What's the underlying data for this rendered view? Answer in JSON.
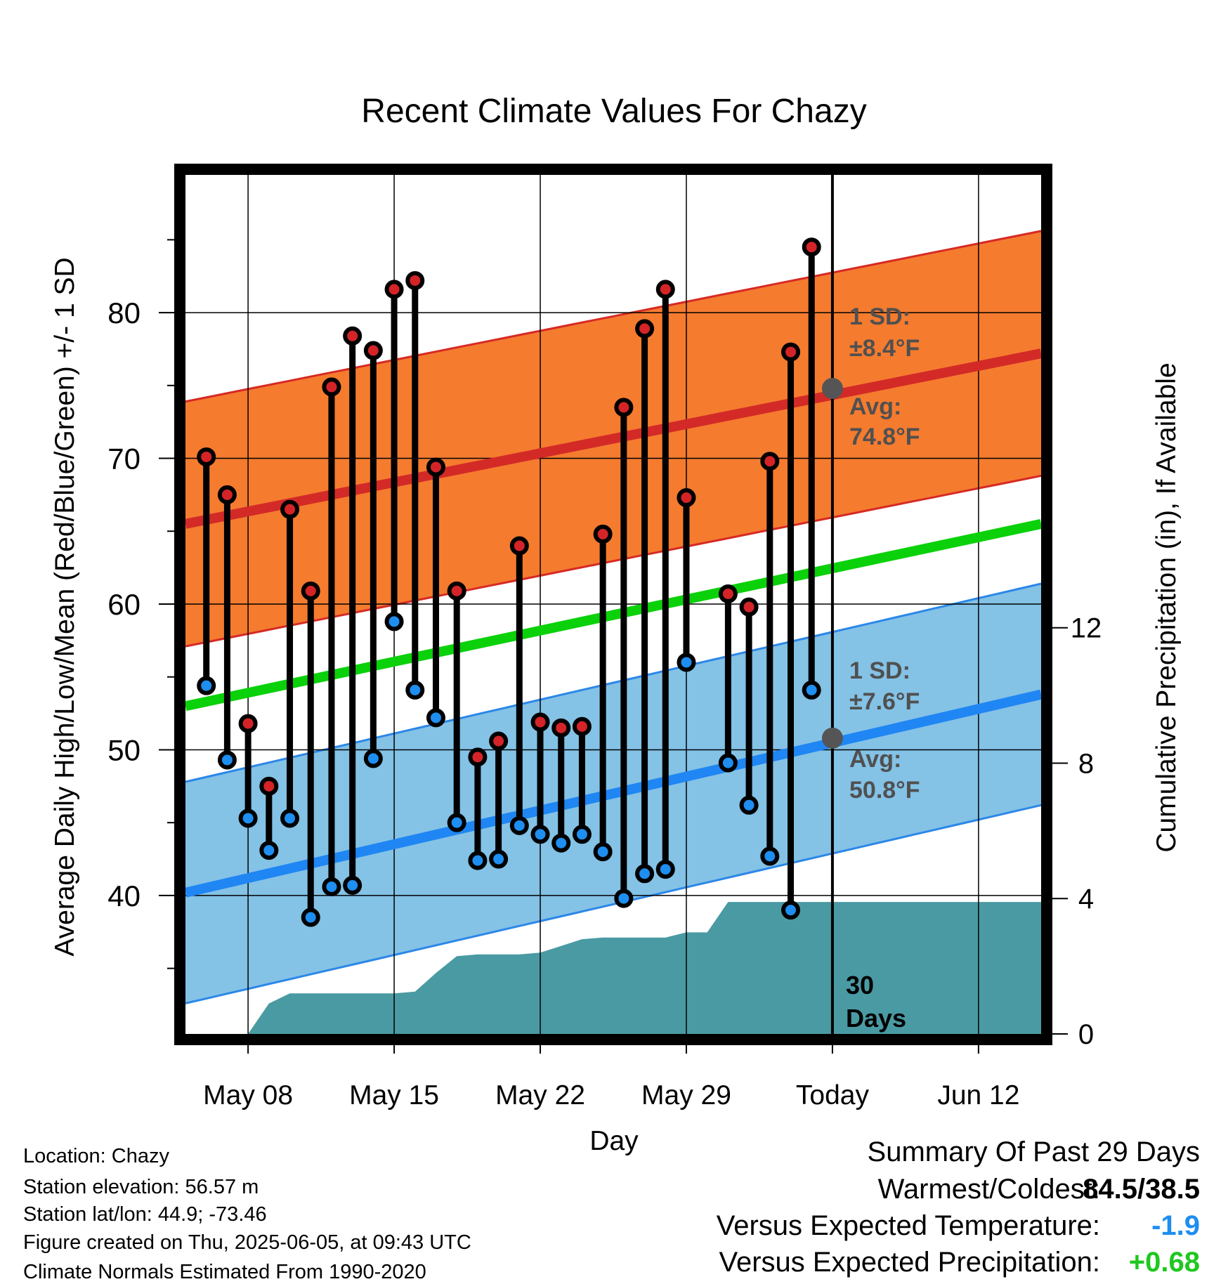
{
  "chart_data": {
    "type": "line",
    "title": "Recent Climate Values For Chazy",
    "xlabel": "Day",
    "ylabel": "Average Daily High/Low/Mean (Red/Blue/Green) +/- 1 SD",
    "y2label": "Cumulative Precipitation (in), If Available",
    "x_ticks": [
      "May 08",
      "May 15",
      "May 22",
      "May 29",
      "Today",
      "Jun 12"
    ],
    "y_ticks": [
      40,
      50,
      60,
      70,
      80
    ],
    "y2_ticks": [
      0,
      4,
      8,
      12
    ],
    "xlim": [
      "May 05",
      "Jun 15"
    ],
    "ylim": [
      30.5,
      89.5
    ],
    "y2lim": [
      0,
      25.4
    ],
    "today": "Jun 05",
    "window_label_num": "30",
    "window_label_text": "Days",
    "normal_high": {
      "start": 65.5,
      "end": 77.2
    },
    "normal_low": {
      "start": 40.2,
      "end": 53.8
    },
    "normal_mean": {
      "start": 53.0,
      "end": 65.5
    },
    "high_sd": 8.4,
    "low_sd": 7.6,
    "high_annotation": {
      "sd_title": "1 SD:",
      "sd_value": "±8.4°F",
      "avg_title": "Avg:",
      "avg_value": "74.8°F",
      "avg": 74.8
    },
    "low_annotation": {
      "sd_title": "1 SD:",
      "sd_value": "±7.6°F",
      "avg_title": "Avg:",
      "avg_value": "50.8°F",
      "avg": 50.8
    },
    "daily": [
      {
        "date": "May 06",
        "high": 70.1,
        "low": 54.4
      },
      {
        "date": "May 07",
        "high": 67.5,
        "low": 49.3
      },
      {
        "date": "May 08",
        "high": 51.8,
        "low": 45.3
      },
      {
        "date": "May 09",
        "high": 47.5,
        "low": 43.1
      },
      {
        "date": "May 10",
        "high": 66.5,
        "low": 45.3
      },
      {
        "date": "May 11",
        "high": 60.9,
        "low": 38.5
      },
      {
        "date": "May 12",
        "high": 74.9,
        "low": 40.6
      },
      {
        "date": "May 13",
        "high": 78.4,
        "low": 40.7
      },
      {
        "date": "May 14",
        "high": 77.4,
        "low": 49.4
      },
      {
        "date": "May 15",
        "high": 81.6,
        "low": 58.8
      },
      {
        "date": "May 16",
        "high": 82.2,
        "low": 54.1
      },
      {
        "date": "May 17",
        "high": 69.4,
        "low": 52.2
      },
      {
        "date": "May 18",
        "high": 60.9,
        "low": 45.0
      },
      {
        "date": "May 19",
        "high": 49.5,
        "low": 42.4
      },
      {
        "date": "May 20",
        "high": 50.6,
        "low": 42.5
      },
      {
        "date": "May 21",
        "high": 64.0,
        "low": 44.8
      },
      {
        "date": "May 22",
        "high": 51.9,
        "low": 44.2
      },
      {
        "date": "May 23",
        "high": 51.5,
        "low": 43.6
      },
      {
        "date": "May 24",
        "high": 51.6,
        "low": 44.2
      },
      {
        "date": "May 25",
        "high": 64.8,
        "low": 43.0
      },
      {
        "date": "May 26",
        "high": 73.5,
        "low": 39.8
      },
      {
        "date": "May 27",
        "high": 78.9,
        "low": 41.5
      },
      {
        "date": "May 28",
        "high": 81.6,
        "low": 41.8
      },
      {
        "date": "May 29",
        "high": 67.3,
        "low": 56.0
      },
      {
        "date": "May 31",
        "high": 60.7,
        "low": 49.1
      },
      {
        "date": "Jun 01",
        "high": 59.8,
        "low": 46.2
      },
      {
        "date": "Jun 02",
        "high": 69.8,
        "low": 42.7
      },
      {
        "date": "Jun 03",
        "high": 77.3,
        "low": 39.0
      },
      {
        "date": "Jun 04",
        "high": 84.5,
        "low": 54.1
      }
    ],
    "precipitation_cumulative": [
      {
        "date": "May 05",
        "value": 0
      },
      {
        "date": "May 06",
        "value": 0
      },
      {
        "date": "May 07",
        "value": 0
      },
      {
        "date": "May 08",
        "value": 0
      },
      {
        "date": "May 09",
        "value": 0.9
      },
      {
        "date": "May 10",
        "value": 1.2
      },
      {
        "date": "May 11",
        "value": 1.2
      },
      {
        "date": "May 12",
        "value": 1.2
      },
      {
        "date": "May 13",
        "value": 1.2
      },
      {
        "date": "May 14",
        "value": 1.2
      },
      {
        "date": "May 15",
        "value": 1.2
      },
      {
        "date": "May 16",
        "value": 1.25
      },
      {
        "date": "May 17",
        "value": 1.8
      },
      {
        "date": "May 18",
        "value": 2.3
      },
      {
        "date": "May 19",
        "value": 2.35
      },
      {
        "date": "May 20",
        "value": 2.35
      },
      {
        "date": "May 21",
        "value": 2.35
      },
      {
        "date": "May 22",
        "value": 2.4
      },
      {
        "date": "May 23",
        "value": 2.6
      },
      {
        "date": "May 24",
        "value": 2.8
      },
      {
        "date": "May 25",
        "value": 2.85
      },
      {
        "date": "May 26",
        "value": 2.85
      },
      {
        "date": "May 27",
        "value": 2.85
      },
      {
        "date": "May 28",
        "value": 2.85
      },
      {
        "date": "May 29",
        "value": 3.0
      },
      {
        "date": "May 30",
        "value": 3.0
      },
      {
        "date": "May 31",
        "value": 3.9
      },
      {
        "date": "Jun 05",
        "value": 3.9
      },
      {
        "date": "Jun 15",
        "value": 3.9
      }
    ],
    "colors": {
      "high_band": "#f57b2f",
      "high_edge": "#d62a24",
      "high_line": "#d32a27",
      "low_band": "#84c2e6",
      "low_edge": "#2b87e8",
      "low_line": "#1f86f3",
      "mean_line": "#0ad10a",
      "precip": "#4a9aa3",
      "high_dot": "#d42428",
      "low_dot": "#1e8ef0",
      "annotation": "#505050"
    }
  },
  "footer": {
    "location": "Location: Chazy",
    "elevation": "Station elevation: 56.57 m",
    "latlon": "Station lat/lon: 44.9; -73.46",
    "created": "Figure created on Thu, 2025-06-05, at 09:43 UTC",
    "normals": "Climate Normals Estimated From 1990-2020"
  },
  "summary": {
    "title": "Summary Of Past 29 Days",
    "warm_cold_label": "Warmest/Coldest:",
    "warm_cold_value": "84.5/38.5",
    "temp_label": "Versus Expected Temperature:",
    "temp_value": "-1.9",
    "temp_color": "#1e8ef0",
    "precip_label": "Versus Expected Precipitation:",
    "precip_value": "+0.68",
    "precip_color": "#1ec81e"
  }
}
